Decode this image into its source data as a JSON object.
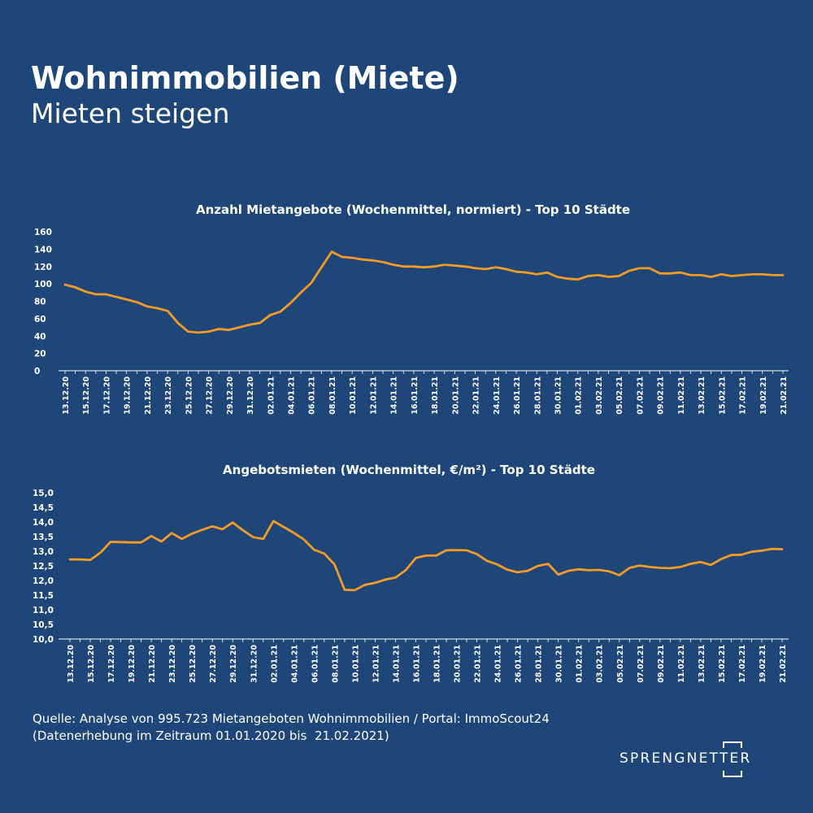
{
  "title": "Wohnimmobilien (Miete)",
  "subtitle": "Mieten steigen",
  "source": {
    "line1": "Quelle: Analyse von 995.723 Mietangeboten Wohnimmobilien / Portal: ImmoScout24",
    "line2": "(Datenerhebung im Zeitraum 01.01.2020 bis  21.02.2021)"
  },
  "logo": {
    "text": "SPRENGNETTER"
  },
  "colors": {
    "background": "#1f4678",
    "line": "#f39a27",
    "text": "#ffffff"
  },
  "chart_data": [
    {
      "type": "line",
      "title": "Anzahl Mietangebote (Wochenmittel, normiert) - Top 10 Städte",
      "xlabel": "",
      "ylabel": "",
      "ylim": [
        0,
        160
      ],
      "yticks": [
        "0",
        "20",
        "40",
        "60",
        "80",
        "100",
        "120",
        "140",
        "160"
      ],
      "grid": false,
      "x": [
        "13.12.20",
        "14.12.20",
        "15.12.20",
        "16.12.20",
        "17.12.20",
        "18.12.20",
        "19.12.20",
        "20.12.20",
        "21.12.20",
        "22.12.20",
        "23.12.20",
        "24.12.20",
        "25.12.20",
        "26.12.20",
        "27.12.20",
        "28.12.20",
        "29.12.20",
        "30.12.20",
        "31.12.20",
        "01.01.21",
        "02.01.21",
        "03.01.21",
        "04.01.21",
        "05.01.21",
        "06.01.21",
        "07.01.21",
        "08.01.21",
        "09.01.21",
        "10.01.21",
        "11.01.21",
        "12.01.21",
        "13.01.21",
        "14.01.21",
        "15.01.21",
        "16.01.21",
        "17.01.21",
        "18.01.21",
        "19.01.21",
        "20.01.21",
        "21.01.21",
        "22.01.21",
        "23.01.21",
        "24.01.21",
        "25.01.21",
        "26.01.21",
        "27.01.21",
        "28.01.21",
        "29.01.21",
        "30.01.21",
        "31.01.21",
        "01.02.21",
        "02.02.21",
        "03.02.21",
        "04.02.21",
        "05.02.21",
        "06.02.21",
        "07.02.21",
        "08.02.21",
        "09.02.21",
        "10.02.21",
        "11.02.21",
        "12.02.21",
        "13.02.21",
        "14.02.21",
        "15.02.21",
        "16.02.21",
        "17.02.21",
        "18.02.21",
        "19.02.21",
        "20.02.21",
        "21.02.21"
      ],
      "tick_labels": [
        "13.12.20",
        "15.12.20",
        "17.12.20",
        "19.12.20",
        "21.12.20",
        "23.12.20",
        "25.12.20",
        "27.12.20",
        "29.12.20",
        "31.12.20",
        "02.01.21",
        "04.01.21",
        "06.01.21",
        "08.01.21",
        "10.01.21",
        "12.01.21",
        "14.01.21",
        "16.01.21",
        "18.01.21",
        "20.01.21",
        "22.01.21",
        "24.01.21",
        "26.01.21",
        "28.01.21",
        "30.01.21",
        "01.02.21",
        "03.02.21",
        "05.02.21",
        "07.02.21",
        "09.02.21",
        "11.02.21",
        "13.02.21",
        "15.02.21",
        "17.02.21",
        "19.02.21",
        "21.02.21"
      ],
      "series": [
        {
          "values": [
            99,
            96,
            91,
            88,
            88,
            85,
            82,
            79,
            74,
            72,
            69,
            55,
            45,
            44,
            45,
            48,
            47,
            50,
            53,
            55,
            64,
            68,
            78,
            90,
            101,
            119,
            137,
            131,
            130,
            128,
            127,
            125,
            122,
            120,
            120,
            119,
            120,
            122,
            121,
            120,
            118,
            117,
            119,
            117,
            114,
            113,
            111,
            113,
            108,
            106,
            105,
            109,
            110,
            108,
            109,
            115,
            118,
            118,
            112,
            112,
            113,
            110,
            110,
            108,
            111,
            109,
            110,
            111,
            111,
            110,
            110
          ]
        }
      ]
    },
    {
      "type": "line",
      "title": "Angebotsmieten (Wochenmittel, €/m²) - Top 10 Städte",
      "xlabel": "",
      "ylabel": "",
      "ylim": [
        10.0,
        15.0
      ],
      "yticks": [
        "10,0",
        "10,5",
        "11,0",
        "11,5",
        "12,0",
        "12,5",
        "13,0",
        "13,5",
        "14,0",
        "14,5",
        "15,0"
      ],
      "grid": false,
      "x": [
        "13.12.20",
        "14.12.20",
        "15.12.20",
        "16.12.20",
        "17.12.20",
        "18.12.20",
        "19.12.20",
        "20.12.20",
        "21.12.20",
        "22.12.20",
        "23.12.20",
        "24.12.20",
        "25.12.20",
        "26.12.20",
        "27.12.20",
        "28.12.20",
        "29.12.20",
        "30.12.20",
        "31.12.20",
        "01.01.21",
        "02.01.21",
        "03.01.21",
        "04.01.21",
        "05.01.21",
        "06.01.21",
        "07.01.21",
        "08.01.21",
        "09.01.21",
        "10.01.21",
        "11.01.21",
        "12.01.21",
        "13.01.21",
        "14.01.21",
        "15.01.21",
        "16.01.21",
        "17.01.21",
        "18.01.21",
        "19.01.21",
        "20.01.21",
        "21.01.21",
        "22.01.21",
        "23.01.21",
        "24.01.21",
        "25.01.21",
        "26.01.21",
        "27.01.21",
        "28.01.21",
        "29.01.21",
        "30.01.21",
        "31.01.21",
        "01.02.21",
        "02.02.21",
        "03.02.21",
        "04.02.21",
        "05.02.21",
        "06.02.21",
        "07.02.21",
        "08.02.21",
        "09.02.21",
        "10.02.21",
        "11.02.21",
        "12.02.21",
        "13.02.21",
        "14.02.21",
        "15.02.21",
        "16.02.21",
        "17.02.21",
        "18.02.21",
        "19.02.21",
        "20.02.21",
        "21.02.21"
      ],
      "tick_labels": [
        "13.12.20",
        "15.12.20",
        "17.12.20",
        "19.12.20",
        "21.12.20",
        "23.12.20",
        "25.12.20",
        "27.12.20",
        "29.12.20",
        "31.12.20",
        "02.01.21",
        "04.01.21",
        "06.01.21",
        "08.01.21",
        "10.01.21",
        "12.01.21",
        "14.01.21",
        "16.01.21",
        "18.01.21",
        "20.01.21",
        "22.01.21",
        "24.01.21",
        "26.01.21",
        "28.01.21",
        "30.01.21",
        "01.02.21",
        "03.02.21",
        "05.02.21",
        "07.02.21",
        "09.02.21",
        "11.02.21",
        "13.02.21",
        "15.02.21",
        "17.02.21",
        "19.02.21",
        "21.02.21"
      ],
      "series": [
        {
          "values": [
            12.72,
            12.72,
            12.7,
            12.95,
            13.32,
            13.31,
            13.3,
            13.3,
            13.52,
            13.33,
            13.62,
            13.42,
            13.6,
            13.73,
            13.85,
            13.75,
            13.98,
            13.72,
            13.48,
            13.42,
            14.03,
            13.83,
            13.63,
            13.4,
            13.05,
            12.92,
            12.55,
            11.68,
            11.67,
            11.85,
            11.92,
            12.03,
            12.1,
            12.35,
            12.77,
            12.85,
            12.85,
            13.03,
            13.04,
            13.03,
            12.9,
            12.67,
            12.55,
            12.37,
            12.28,
            12.33,
            12.5,
            12.57,
            12.2,
            12.33,
            12.38,
            12.35,
            12.36,
            12.31,
            12.18,
            12.43,
            12.51,
            12.46,
            12.43,
            12.42,
            12.46,
            12.57,
            12.63,
            12.53,
            12.73,
            12.87,
            12.88,
            12.98,
            13.02,
            13.08,
            13.07
          ]
        }
      ]
    }
  ]
}
